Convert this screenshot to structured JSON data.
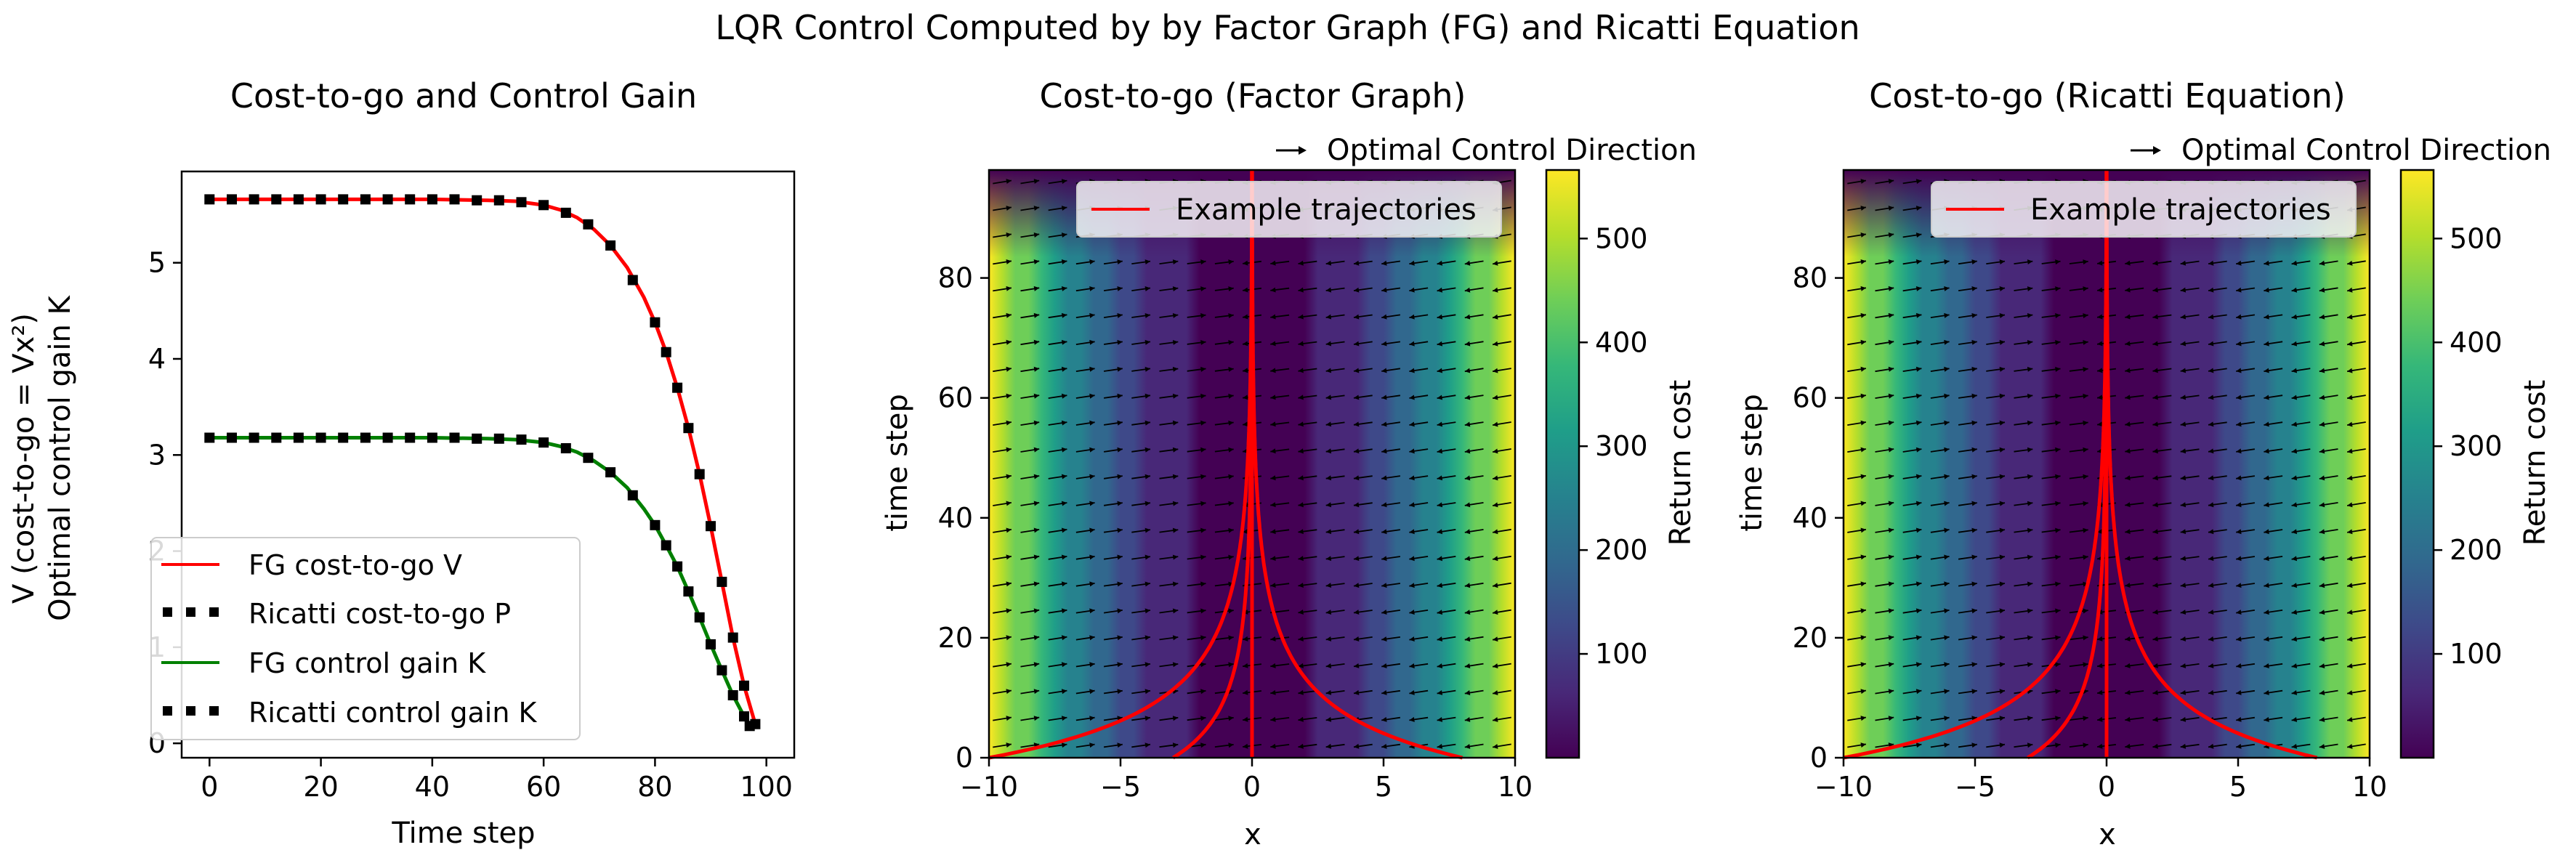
{
  "figure": {
    "suptitle": "LQR Control Computed by by Factor Graph (FG) and Ricatti Equation"
  },
  "colors": {
    "fg_cost": "#ff0000",
    "ricatti": "#000000",
    "fg_gain": "#008000",
    "trajectory": "#ff0000",
    "viridis": [
      "#440154",
      "#482878",
      "#3e4989",
      "#31688e",
      "#26828e",
      "#1f9e89",
      "#35b779",
      "#6ece58",
      "#b5de2b",
      "#fde725"
    ]
  },
  "chart_data": [
    {
      "id": "left",
      "type": "line",
      "title": "Cost-to-go and Control Gain",
      "xlabel": "Time step",
      "ylabel_line1": "V (cost-to-go = Vx²)",
      "ylabel_line2": "Optimal control gain K",
      "xlim": [
        -5,
        105
      ],
      "ylim": [
        -0.15,
        5.95
      ],
      "xticks": [
        0,
        20,
        40,
        60,
        80,
        100
      ],
      "yticks": [
        0,
        1,
        2,
        3,
        4,
        5
      ],
      "grid": false,
      "legend_position": "lower-left",
      "legend": [
        "FG cost-to-go V",
        "Ricatti cost-to-go P",
        "FG control gain K",
        "Ricatti control gain K"
      ],
      "series": [
        {
          "name": "FG cost-to-go V",
          "style": "line",
          "color": "#ff0000",
          "x": [
            0,
            10,
            20,
            30,
            40,
            50,
            55,
            60,
            63,
            66,
            69,
            72,
            75,
            78,
            80,
            82,
            84,
            86,
            88,
            90,
            92,
            94,
            96,
            98
          ],
          "y": [
            5.66,
            5.66,
            5.66,
            5.66,
            5.66,
            5.65,
            5.64,
            5.6,
            5.55,
            5.47,
            5.35,
            5.18,
            4.95,
            4.64,
            4.38,
            4.07,
            3.7,
            3.28,
            2.8,
            2.26,
            1.68,
            1.1,
            0.6,
            0.2
          ]
        },
        {
          "name": "Ricatti cost-to-go P",
          "style": "dots",
          "color": "#000000",
          "x": [
            0,
            4,
            8,
            12,
            16,
            20,
            24,
            28,
            32,
            36,
            40,
            44,
            48,
            52,
            56,
            60,
            64,
            68,
            72,
            76,
            80,
            82,
            84,
            86,
            88,
            90,
            92,
            94,
            96,
            98
          ],
          "y": [
            5.66,
            5.66,
            5.66,
            5.66,
            5.66,
            5.66,
            5.66,
            5.66,
            5.66,
            5.66,
            5.66,
            5.66,
            5.65,
            5.65,
            5.63,
            5.6,
            5.52,
            5.4,
            5.18,
            4.82,
            4.38,
            4.07,
            3.7,
            3.28,
            2.8,
            2.26,
            1.68,
            1.1,
            0.6,
            0.2
          ]
        },
        {
          "name": "FG control gain K",
          "style": "line",
          "color": "#008000",
          "x": [
            0,
            10,
            20,
            30,
            40,
            50,
            55,
            60,
            63,
            66,
            69,
            72,
            75,
            78,
            80,
            82,
            84,
            86,
            88,
            90,
            92,
            94,
            96,
            97
          ],
          "y": [
            3.18,
            3.18,
            3.18,
            3.18,
            3.18,
            3.17,
            3.16,
            3.13,
            3.09,
            3.03,
            2.94,
            2.82,
            2.66,
            2.44,
            2.27,
            2.06,
            1.84,
            1.58,
            1.31,
            1.03,
            0.76,
            0.5,
            0.28,
            0.18
          ]
        },
        {
          "name": "Ricatti control gain K",
          "style": "dots",
          "color": "#000000",
          "x": [
            0,
            4,
            8,
            12,
            16,
            20,
            24,
            28,
            32,
            36,
            40,
            44,
            48,
            52,
            56,
            60,
            64,
            68,
            72,
            76,
            80,
            82,
            84,
            86,
            88,
            90,
            92,
            94,
            96,
            97
          ],
          "y": [
            3.18,
            3.18,
            3.18,
            3.18,
            3.18,
            3.18,
            3.18,
            3.18,
            3.18,
            3.18,
            3.18,
            3.18,
            3.17,
            3.17,
            3.16,
            3.13,
            3.07,
            2.97,
            2.82,
            2.58,
            2.27,
            2.06,
            1.84,
            1.58,
            1.31,
            1.03,
            0.76,
            0.5,
            0.28,
            0.18
          ]
        }
      ]
    },
    {
      "id": "mid",
      "type": "heatmap",
      "title": "Cost-to-go (Factor Graph)",
      "xlabel": "x",
      "ylabel": "time step",
      "xlim": [
        -10,
        10
      ],
      "ylim": [
        0,
        98
      ],
      "xticks": [
        -10,
        -5,
        0,
        5,
        10
      ],
      "yticks": [
        0,
        20,
        40,
        60,
        80
      ],
      "colorbar_label": "Return cost",
      "colorbar_ticks": [
        100,
        200,
        300,
        400,
        500
      ],
      "clim": [
        0,
        566
      ],
      "quiver_key": "Optimal Control Direction",
      "legend": [
        "Example trajectories"
      ],
      "trajectory_starts": [
        -10,
        -3,
        8
      ]
    },
    {
      "id": "right",
      "type": "heatmap",
      "title": "Cost-to-go (Ricatti Equation)",
      "xlabel": "x",
      "ylabel": "time step",
      "xlim": [
        -10,
        10
      ],
      "ylim": [
        0,
        98
      ],
      "xticks": [
        -10,
        -5,
        0,
        5,
        10
      ],
      "yticks": [
        0,
        20,
        40,
        60,
        80
      ],
      "colorbar_label": "Return cost",
      "colorbar_ticks": [
        100,
        200,
        300,
        400,
        500
      ],
      "clim": [
        0,
        566
      ],
      "quiver_key": "Optimal Control Direction",
      "legend": [
        "Example trajectories"
      ],
      "trajectory_starts": [
        -10,
        -3,
        8
      ]
    }
  ]
}
